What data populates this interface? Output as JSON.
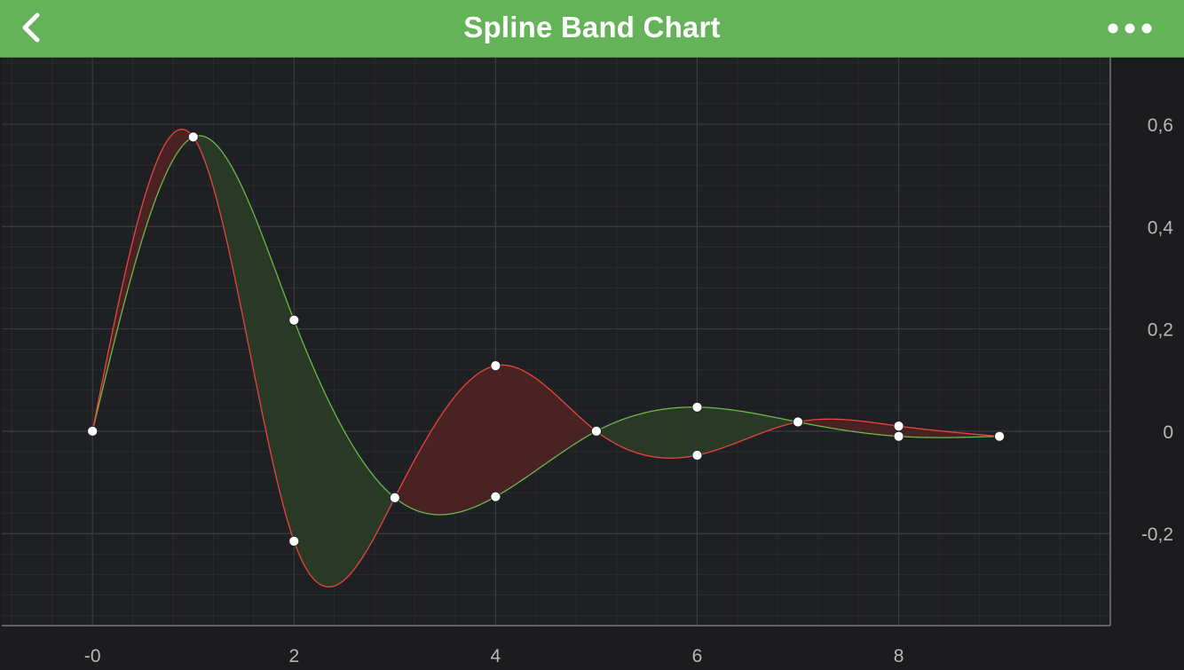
{
  "header": {
    "title": "Spline Band Chart",
    "back_icon": "chevron-left-icon",
    "more_icon": "more-horizontal-icon"
  },
  "colors": {
    "nav_bar": "#65b358",
    "background": "#1c1c1e",
    "plot_background": "#1f2023",
    "band_up_fill": "#2a3a27",
    "band_down_fill": "#4a2324",
    "series1_line": "#e8453c",
    "series2_line": "#6cb84a",
    "marker": "#ffffff",
    "grid": "#3a3b3e",
    "axis_label": "#b8b8b8"
  },
  "chart_data": {
    "type": "area",
    "title": "",
    "xlabel": "",
    "ylabel": "",
    "x": [
      0,
      1,
      2,
      3,
      4,
      5,
      6,
      7,
      8,
      9
    ],
    "series": [
      {
        "name": "",
        "values": [
          0,
          0.575,
          -0.215,
          -0.13,
          0.128,
          0,
          -0.047,
          0.018,
          0.01,
          -0.01
        ]
      },
      {
        "name": "",
        "values": [
          0,
          0.575,
          0.217,
          -0.13,
          -0.128,
          0,
          0.047,
          0.018,
          -0.01,
          -0.01
        ]
      }
    ],
    "xlim": [
      -0.9,
      10.1
    ],
    "ylim": [
      -0.38,
      0.73
    ],
    "x_ticks": [
      0,
      2,
      4,
      6,
      8
    ],
    "x_tick_labels": [
      "-0",
      "2",
      "4",
      "6",
      "8"
    ],
    "y_ticks": [
      0.6,
      0.4,
      0.2,
      0,
      -0.2
    ],
    "y_tick_labels": [
      "0,6",
      "0,4",
      "0,2",
      "0",
      "-0,2"
    ],
    "y_axis_position": "right",
    "grid": true,
    "legend": "none"
  }
}
